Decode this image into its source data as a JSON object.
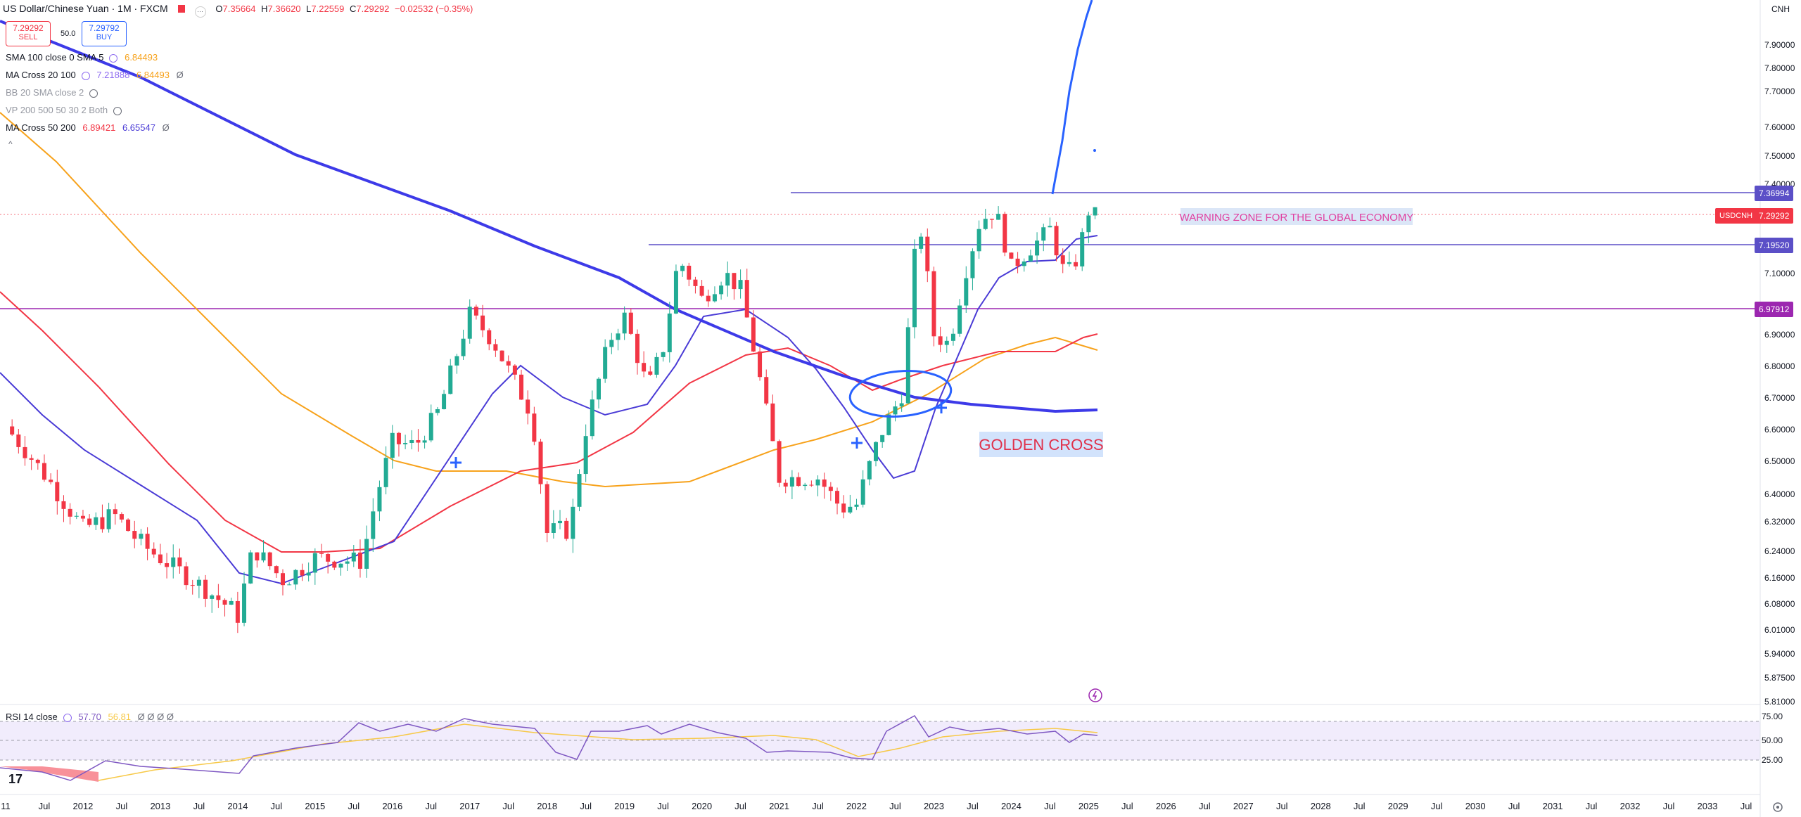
{
  "header": {
    "symbol_title": "US Dollar/Chinese Yuan · 1M · FXCM",
    "ohlc": {
      "o_label": "O",
      "o": "7.35664",
      "h_label": "H",
      "h": "7.36620",
      "l_label": "L",
      "l": "7.22559",
      "c_label": "C",
      "c": "7.29292",
      "change": "−0.02532 (−0.35%)"
    },
    "sell_price": "7.29292",
    "sell_label": "SELL",
    "spread": "50.0",
    "buy_price": "7.29792",
    "buy_label": "BUY",
    "currency": "CNH",
    "colors": {
      "up": "#22ab94",
      "down": "#f23645",
      "accent": "#2962ff"
    }
  },
  "indicators": [
    {
      "name": "SMA 100 close 0 SMA 5",
      "values": [
        "6.84493"
      ],
      "colors": [
        "#f7a21b"
      ],
      "hidden": false
    },
    {
      "name": "MA Cross 20 100",
      "values": [
        "7.21888",
        "6.84493"
      ],
      "colors": [
        "#8e6cf0",
        "#f7a21b"
      ],
      "hidden": false
    },
    {
      "name": "BB 20 SMA close 2",
      "values": [],
      "colors": [],
      "hidden": true
    },
    {
      "name": "VP 200 500 50 30 2 Both",
      "values": [],
      "colors": [],
      "hidden": true
    },
    {
      "name": "MA Cross 50 200",
      "values": [
        "6.89421",
        "6.65547"
      ],
      "colors": [
        "#f23645",
        "#4a3bd6"
      ],
      "hidden": false
    }
  ],
  "rsi": {
    "label": "RSI 14 close",
    "value": "57.70",
    "ma": "56.81",
    "levels": [
      "75.00",
      "50.00",
      "25.00"
    ]
  },
  "annotations": {
    "warning": "WARNING ZONE FOR THE GLOBAL ECONOMY",
    "golden_cross": "GOLDEN CROSS"
  },
  "price_tags": [
    {
      "label": "7.36994",
      "color": "#5b4fc7"
    },
    {
      "symbol": "USDCNH",
      "label": "7.29292",
      "color": "#f23645"
    },
    {
      "label": "7.19520",
      "color": "#5b4fc7"
    },
    {
      "label": "6.97912",
      "color": "#9c27b0"
    }
  ],
  "chart_data": {
    "type": "line",
    "title": "US Dollar/Chinese Yuan · 1M · FXCM",
    "xlabel": "",
    "ylabel": "",
    "y_ticks": [
      "7.90000",
      "7.80000",
      "7.70000",
      "7.60000",
      "7.50000",
      "7.40000",
      "7.10000",
      "6.90000",
      "6.80000",
      "6.70000",
      "6.60000",
      "6.50000",
      "6.40000",
      "6.32000",
      "6.24000",
      "6.16000",
      "6.08000",
      "6.01000",
      "5.94000",
      "5.87500",
      "5.81000"
    ],
    "x_ticks": [
      {
        "label": "11",
        "t": 2011.0
      },
      {
        "label": "Jul",
        "t": 2011.5
      },
      {
        "label": "2012",
        "t": 2012.0
      },
      {
        "label": "Jul",
        "t": 2012.5
      },
      {
        "label": "2013",
        "t": 2013.0
      },
      {
        "label": "Jul",
        "t": 2013.5
      },
      {
        "label": "2014",
        "t": 2014.0
      },
      {
        "label": "Jul",
        "t": 2014.5
      },
      {
        "label": "2015",
        "t": 2015.0
      },
      {
        "label": "Jul",
        "t": 2015.5
      },
      {
        "label": "2016",
        "t": 2016.0
      },
      {
        "label": "Jul",
        "t": 2016.5
      },
      {
        "label": "2017",
        "t": 2017.0
      },
      {
        "label": "Jul",
        "t": 2017.5
      },
      {
        "label": "2018",
        "t": 2018.0
      },
      {
        "label": "Jul",
        "t": 2018.5
      },
      {
        "label": "2019",
        "t": 2019.0
      },
      {
        "label": "Jul",
        "t": 2019.5
      },
      {
        "label": "2020",
        "t": 2020.0
      },
      {
        "label": "Jul",
        "t": 2020.5
      },
      {
        "label": "2021",
        "t": 2021.0
      },
      {
        "label": "Jul",
        "t": 2021.5
      },
      {
        "label": "2022",
        "t": 2022.0
      },
      {
        "label": "Jul",
        "t": 2022.5
      },
      {
        "label": "2023",
        "t": 2023.0
      },
      {
        "label": "Jul",
        "t": 2023.5
      },
      {
        "label": "2024",
        "t": 2024.0
      },
      {
        "label": "Jul",
        "t": 2024.5
      },
      {
        "label": "2025",
        "t": 2025.0
      },
      {
        "label": "Jul",
        "t": 2025.5
      },
      {
        "label": "2026",
        "t": 2026.0
      },
      {
        "label": "Jul",
        "t": 2026.5
      },
      {
        "label": "2027",
        "t": 2027.0
      },
      {
        "label": "Jul",
        "t": 2027.5
      },
      {
        "label": "2028",
        "t": 2028.0
      },
      {
        "label": "Jul",
        "t": 2028.5
      },
      {
        "label": "2029",
        "t": 2029.0
      },
      {
        "label": "Jul",
        "t": 2029.5
      },
      {
        "label": "2030",
        "t": 2030.0
      },
      {
        "label": "Jul",
        "t": 2030.5
      },
      {
        "label": "2031",
        "t": 2031.0
      },
      {
        "label": "Jul",
        "t": 2031.5
      },
      {
        "label": "2032",
        "t": 2032.0
      },
      {
        "label": "Jul",
        "t": 2032.5
      },
      {
        "label": "2033",
        "t": 2033.0
      },
      {
        "label": "Jul",
        "t": 2033.5
      }
    ],
    "close_path": [
      [
        2011.0,
        6.61
      ],
      [
        2011.5,
        6.46
      ],
      [
        2012.0,
        6.3
      ],
      [
        2012.4,
        6.34
      ],
      [
        2012.75,
        6.26
      ],
      [
        2013.0,
        6.22
      ],
      [
        2013.5,
        6.14
      ],
      [
        2014.0,
        6.05
      ],
      [
        2014.2,
        6.25
      ],
      [
        2014.6,
        6.15
      ],
      [
        2015.0,
        6.22
      ],
      [
        2015.6,
        6.21
      ],
      [
        2015.8,
        6.4
      ],
      [
        2016.0,
        6.56
      ],
      [
        2016.3,
        6.55
      ],
      [
        2016.6,
        6.66
      ],
      [
        2016.9,
        6.89
      ],
      [
        2017.0,
        6.97
      ],
      [
        2017.3,
        6.88
      ],
      [
        2017.8,
        6.65
      ],
      [
        2018.0,
        6.29
      ],
      [
        2018.3,
        6.3
      ],
      [
        2018.5,
        6.6
      ],
      [
        2018.8,
        6.88
      ],
      [
        2019.0,
        6.96
      ],
      [
        2019.3,
        6.73
      ],
      [
        2019.5,
        6.86
      ],
      [
        2019.7,
        7.15
      ],
      [
        2020.0,
        7.02
      ],
      [
        2020.3,
        7.1
      ],
      [
        2020.5,
        7.05
      ],
      [
        2020.7,
        6.82
      ],
      [
        2021.0,
        6.45
      ],
      [
        2021.5,
        6.45
      ],
      [
        2021.8,
        6.36
      ],
      [
        2022.0,
        6.37
      ],
      [
        2022.3,
        6.58
      ],
      [
        2022.6,
        6.72
      ],
      [
        2022.8,
        7.3
      ],
      [
        2022.9,
        7.12
      ],
      [
        2023.0,
        6.9
      ],
      [
        2023.2,
        6.87
      ],
      [
        2023.4,
        7.1
      ],
      [
        2023.6,
        7.28
      ],
      [
        2023.8,
        7.31
      ],
      [
        2024.0,
        7.12
      ],
      [
        2024.5,
        7.25
      ],
      [
        2024.7,
        7.09
      ],
      [
        2024.85,
        7.15
      ],
      [
        2025.0,
        7.31
      ],
      [
        2025.1,
        7.29292
      ]
    ],
    "levels": [
      7.36994,
      7.1952,
      6.97912
    ],
    "series": []
  }
}
